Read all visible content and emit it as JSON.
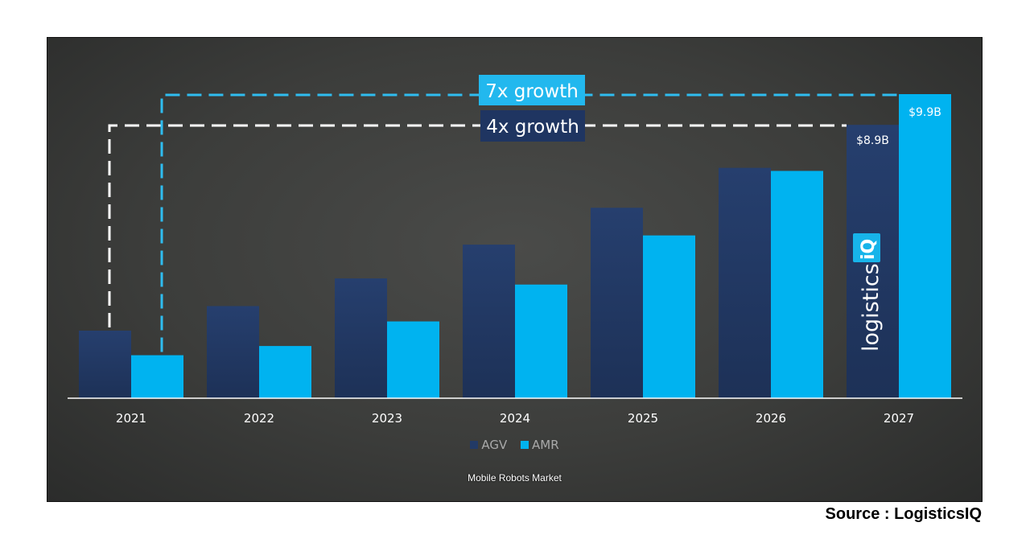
{
  "chart_data": {
    "type": "bar",
    "title": "Mobile Robots Market",
    "categories": [
      "2021",
      "2022",
      "2023",
      "2024",
      "2025",
      "2026",
      "2027"
    ],
    "series": [
      {
        "name": "AGV",
        "color": "#223a66",
        "values": [
          2.2,
          3.0,
          3.9,
          5.0,
          6.2,
          7.5,
          8.9
        ]
      },
      {
        "name": "AMR",
        "color": "#00b3f0",
        "values": [
          1.4,
          1.7,
          2.5,
          3.7,
          5.3,
          7.4,
          9.9
        ]
      }
    ],
    "ylim": [
      0,
      10
    ],
    "data_labels": {
      "agv_2027": "$8.9B",
      "amr_2027": "$9.9B"
    },
    "annotations": {
      "amr_growth": "7x growth",
      "agv_growth": "4x growth"
    },
    "legend_position": "bottom",
    "grid": false
  },
  "logo": {
    "text_main": "logistics",
    "text_badge": "iQ"
  },
  "source": "Source : LogisticsIQ"
}
